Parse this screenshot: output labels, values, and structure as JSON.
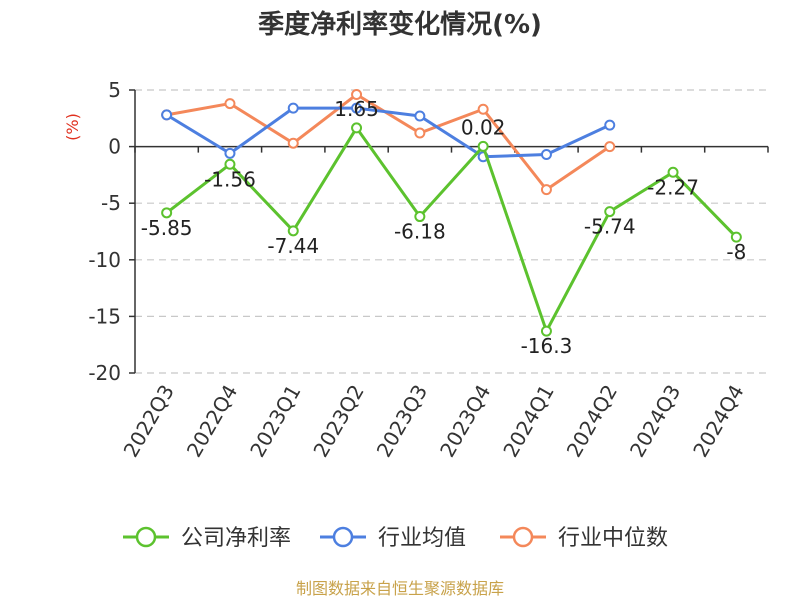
{
  "chart_data": {
    "type": "line",
    "title": "季度净利率变化情况(%)",
    "ylabel": "(%)",
    "xlabel": "",
    "ylim": [
      -20,
      5
    ],
    "yticks": [
      5,
      0,
      -5,
      -10,
      -15,
      -20
    ],
    "grid": "horizontal-dashed",
    "legend_position": "bottom",
    "categories": [
      "2022Q3",
      "2022Q4",
      "2023Q1",
      "2023Q2",
      "2023Q3",
      "2023Q4",
      "2024Q1",
      "2024Q2",
      "2024Q3",
      "2024Q4"
    ],
    "series": [
      {
        "name": "公司净利率",
        "color": "#5cc22e",
        "values": [
          -5.85,
          -1.56,
          -7.44,
          1.65,
          -6.18,
          0.02,
          -16.3,
          -5.74,
          -2.27,
          -8
        ],
        "labels": [
          "-5.85",
          "-1.56",
          "-7.44",
          "1.65",
          "-6.18",
          "0.02",
          "-16.3",
          "-5.74",
          "-2.27",
          "-8"
        ]
      },
      {
        "name": "行业均值",
        "color": "#4d7fe0",
        "values": [
          2.8,
          -0.6,
          3.4,
          3.4,
          2.7,
          -0.9,
          -0.7,
          1.9,
          null,
          null
        ]
      },
      {
        "name": "行业中位数",
        "color": "#f4885a",
        "values": [
          2.8,
          3.8,
          0.3,
          4.6,
          1.2,
          3.3,
          -3.8,
          0.0,
          null,
          null
        ]
      }
    ]
  },
  "footer": {
    "source": "制图数据来自恒生聚源数据库"
  }
}
